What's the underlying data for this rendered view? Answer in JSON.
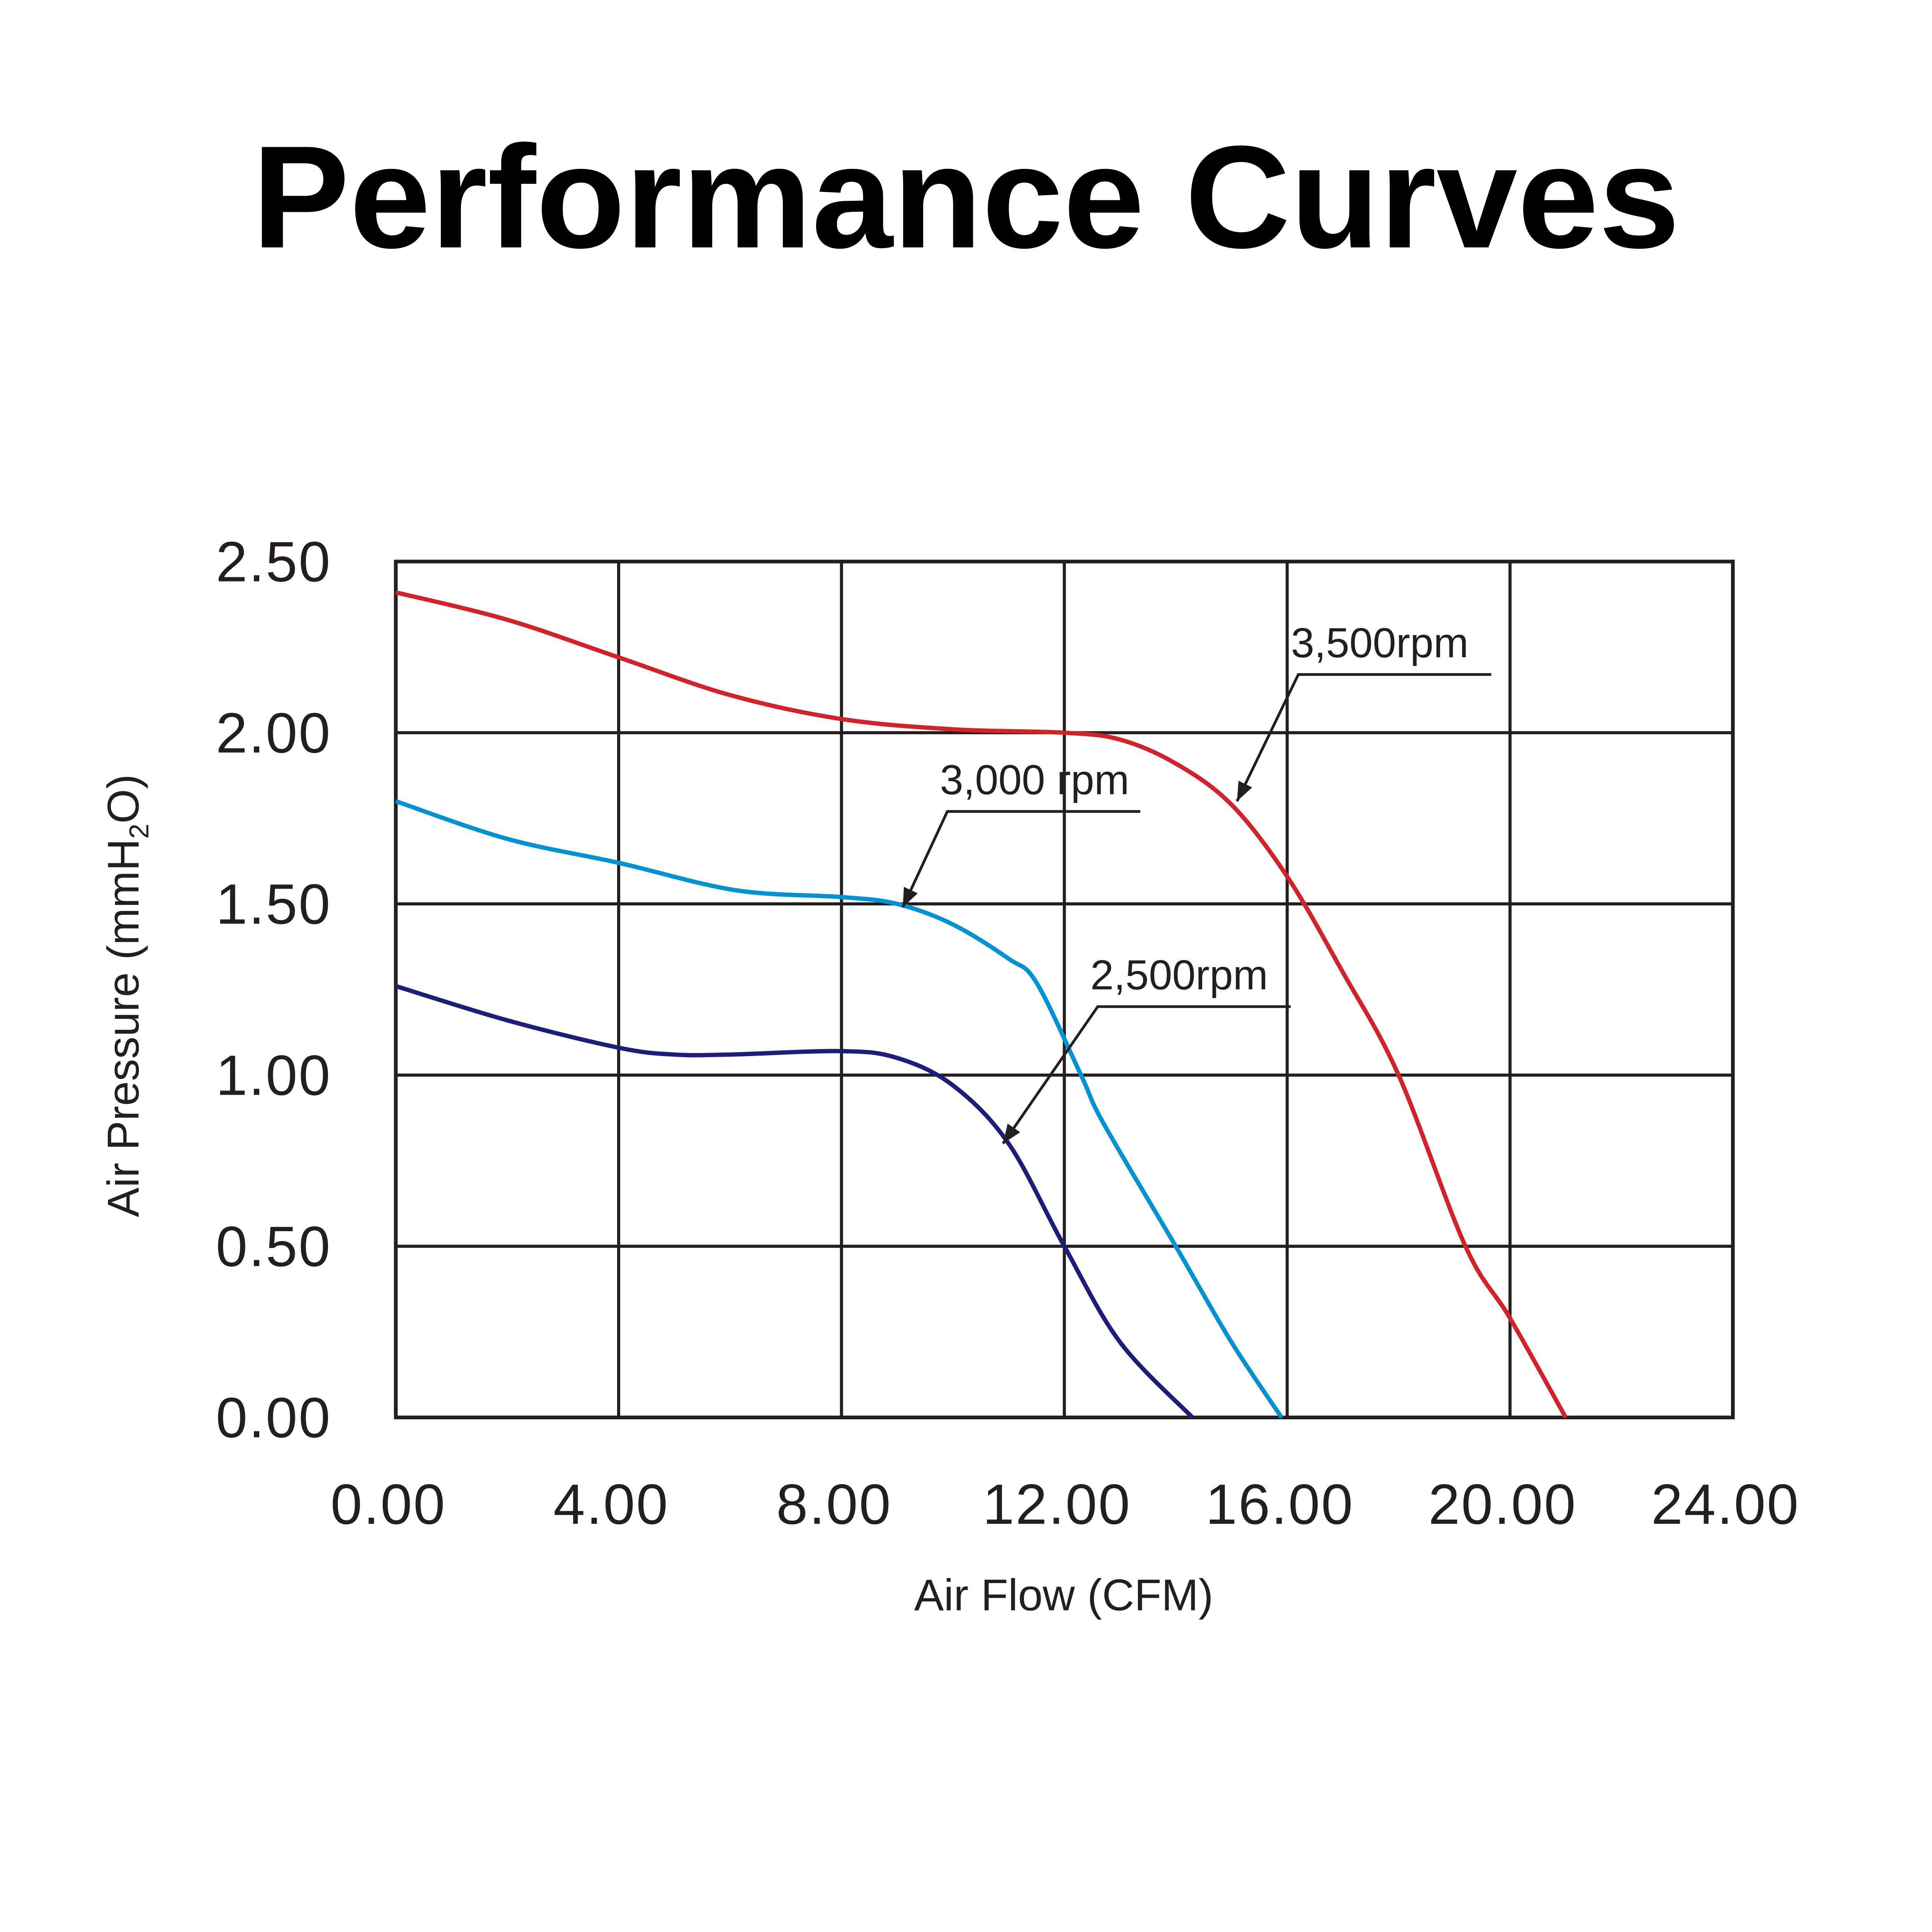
{
  "chart_data": {
    "type": "line",
    "title": "Performance Curves",
    "xlabel": "Air Flow (CFM)",
    "ylabel": "Air Pressure (mmH2O)",
    "ylabel_parts": {
      "pre": "Air Pressure (mmH",
      "sub": "2",
      "post": "O)"
    },
    "xlim": [
      0,
      24
    ],
    "ylim": [
      0,
      2.5
    ],
    "grid": true,
    "xticks": [
      "0.00",
      "4.00",
      "8.00",
      "12.00",
      "16.00",
      "20.00",
      "24.00"
    ],
    "yticks": [
      "0.00",
      "0.50",
      "1.00",
      "1.50",
      "2.00",
      "2.50"
    ],
    "series": [
      {
        "name": "3,500rpm",
        "color": "#d2232a",
        "x": [
          0,
          2,
          4,
          6,
          8,
          10,
          12,
          13,
          14,
          15,
          16,
          17,
          18,
          19.2,
          20,
          21
        ],
        "y": [
          2.41,
          2.33,
          2.22,
          2.11,
          2.04,
          2.01,
          2.0,
          1.98,
          1.91,
          1.79,
          1.58,
          1.3,
          1.0,
          0.5,
          0.29,
          0
        ],
        "label_at": [
          15.1,
          1.8
        ],
        "label_text_at": [
          16.2,
          2.17
        ]
      },
      {
        "name": "3,000 rpm",
        "color": "#0092d2",
        "x": [
          0,
          2,
          4,
          6.1,
          8,
          9,
          10,
          11,
          11.5,
          12.3,
          12.7,
          14,
          15,
          15.9
        ],
        "y": [
          1.8,
          1.69,
          1.62,
          1.54,
          1.52,
          1.5,
          1.44,
          1.34,
          1.27,
          1.0,
          0.86,
          0.5,
          0.22,
          0
        ],
        "label_at": [
          9.1,
          1.49
        ],
        "label_text_at": [
          9.9,
          1.77
        ]
      },
      {
        "name": "2,500rpm",
        "color": "#1e1e7a",
        "x": [
          0,
          2,
          4,
          5,
          6,
          8,
          9,
          10,
          11,
          12,
          13,
          14.3
        ],
        "y": [
          1.26,
          1.16,
          1.08,
          1.06,
          1.06,
          1.07,
          1.05,
          0.97,
          0.8,
          0.5,
          0.22,
          0
        ],
        "label_at": [
          10.9,
          0.8
        ],
        "label_text_at": [
          12.6,
          1.2
        ]
      }
    ]
  }
}
